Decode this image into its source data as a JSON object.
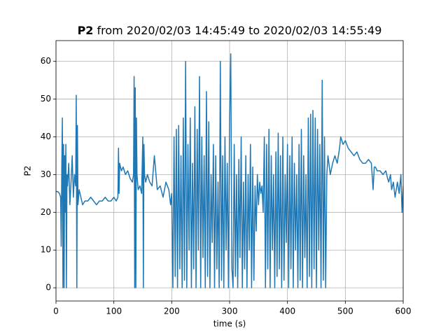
{
  "chart_data": {
    "type": "line",
    "title_parts": [
      "P2",
      "from 2020/02/03 14:45:49 to 2020/02/03 14:55:49"
    ],
    "xlabel": "time (s)",
    "ylabel": "P2",
    "xlim": [
      0,
      600
    ],
    "ylim": [
      -3.5,
      65.5
    ],
    "xticks": [
      0,
      100,
      200,
      300,
      400,
      500,
      600
    ],
    "yticks": [
      0,
      10,
      20,
      30,
      40,
      50,
      60
    ],
    "grid": true,
    "x": [
      0,
      3,
      6,
      8,
      9,
      10,
      11,
      12,
      13,
      14,
      15,
      16,
      17,
      18,
      19,
      20,
      22,
      24,
      26,
      28,
      30,
      32,
      34,
      35,
      36,
      37,
      38,
      40,
      43,
      46,
      50,
      55,
      60,
      65,
      70,
      75,
      80,
      85,
      90,
      95,
      100,
      104,
      107,
      108,
      109,
      110,
      113,
      116,
      120,
      124,
      128,
      132,
      134,
      135,
      136,
      137,
      138,
      139,
      140,
      142,
      145,
      148,
      150,
      151,
      152,
      153,
      155,
      158,
      162,
      166,
      170,
      175,
      180,
      185,
      190,
      195,
      198,
      200,
      202,
      204,
      206,
      208,
      210,
      212,
      214,
      216,
      218,
      220,
      222,
      224,
      226,
      228,
      230,
      232,
      234,
      236,
      238,
      240,
      242,
      244,
      246,
      248,
      250,
      252,
      254,
      256,
      258,
      260,
      262,
      264,
      266,
      268,
      270,
      272,
      274,
      276,
      278,
      280,
      282,
      284,
      286,
      288,
      290,
      292,
      294,
      296,
      298,
      300,
      302,
      304,
      306,
      308,
      310,
      312,
      314,
      316,
      318,
      320,
      322,
      324,
      326,
      328,
      330,
      332,
      334,
      336,
      338,
      340,
      342,
      344,
      346,
      348,
      350,
      352,
      354,
      356,
      358,
      360,
      362,
      364,
      366,
      368,
      370,
      372,
      374,
      376,
      378,
      380,
      382,
      384,
      386,
      388,
      390,
      392,
      394,
      396,
      398,
      400,
      402,
      404,
      406,
      408,
      410,
      412,
      414,
      416,
      418,
      420,
      422,
      424,
      426,
      428,
      430,
      432,
      434,
      436,
      438,
      440,
      442,
      444,
      446,
      448,
      450,
      452,
      454,
      456,
      458,
      460,
      462,
      464,
      466,
      468,
      470,
      474,
      478,
      482,
      486,
      490,
      492,
      496,
      500,
      505,
      510,
      515,
      520,
      525,
      530,
      535,
      540,
      545,
      548,
      550,
      552,
      555,
      560,
      565,
      570,
      573,
      575,
      578,
      580,
      583,
      586,
      590,
      593,
      596,
      598,
      600
    ],
    "series": [
      {
        "name": "P2",
        "color": "#1f77b4",
        "values": [
          25.5,
          25.5,
          25,
          24,
          11,
          32,
          45,
          0,
          38,
          0,
          35,
          20,
          38,
          0,
          30,
          27,
          33,
          22,
          28,
          35,
          24,
          30,
          27,
          51,
          0,
          43,
          22,
          26,
          24,
          22,
          23,
          23,
          24,
          23,
          22,
          23,
          23,
          24,
          23,
          23,
          24,
          23,
          24,
          37,
          25,
          33,
          31,
          32,
          30,
          31,
          29,
          28,
          30,
          56,
          0,
          53,
          0,
          45,
          30,
          26,
          27,
          25,
          40,
          0,
          38,
          30,
          28,
          30,
          28,
          27,
          35,
          26,
          27,
          24,
          28,
          26,
          22,
          25,
          0,
          40,
          3,
          42,
          0,
          43,
          5,
          35,
          0,
          45,
          2,
          60,
          0,
          38,
          10,
          45,
          0,
          33,
          5,
          48,
          0,
          42,
          10,
          56,
          0,
          40,
          8,
          35,
          0,
          52,
          3,
          44,
          0,
          30,
          12,
          38,
          0,
          35,
          5,
          28,
          0,
          60,
          2,
          35,
          0,
          40,
          10,
          33,
          0,
          45,
          62,
          5,
          0,
          38,
          3,
          30,
          0,
          34,
          8,
          40,
          0,
          28,
          5,
          35,
          0,
          30,
          10,
          38,
          0,
          32,
          2,
          27,
          15,
          30,
          22,
          28,
          25,
          27,
          20,
          40,
          0,
          38,
          5,
          42,
          0,
          35,
          10,
          30,
          0,
          36,
          3,
          41,
          5,
          35,
          0,
          40,
          2,
          30,
          12,
          38,
          0,
          35,
          5,
          40,
          0,
          33,
          10,
          30,
          0,
          38,
          2,
          42,
          0,
          35,
          8,
          30,
          0,
          45,
          3,
          46,
          0,
          47,
          5,
          45,
          0,
          42,
          10,
          38,
          0,
          55,
          2,
          40,
          0,
          30,
          35,
          30,
          33,
          35,
          33,
          37,
          40,
          38,
          39,
          37,
          36,
          35,
          36,
          34,
          33,
          33,
          34,
          33,
          26,
          32,
          32,
          31,
          31,
          30,
          31,
          29,
          28,
          30,
          26,
          28,
          24,
          28,
          25,
          30,
          20,
          27
        ]
      }
    ]
  }
}
